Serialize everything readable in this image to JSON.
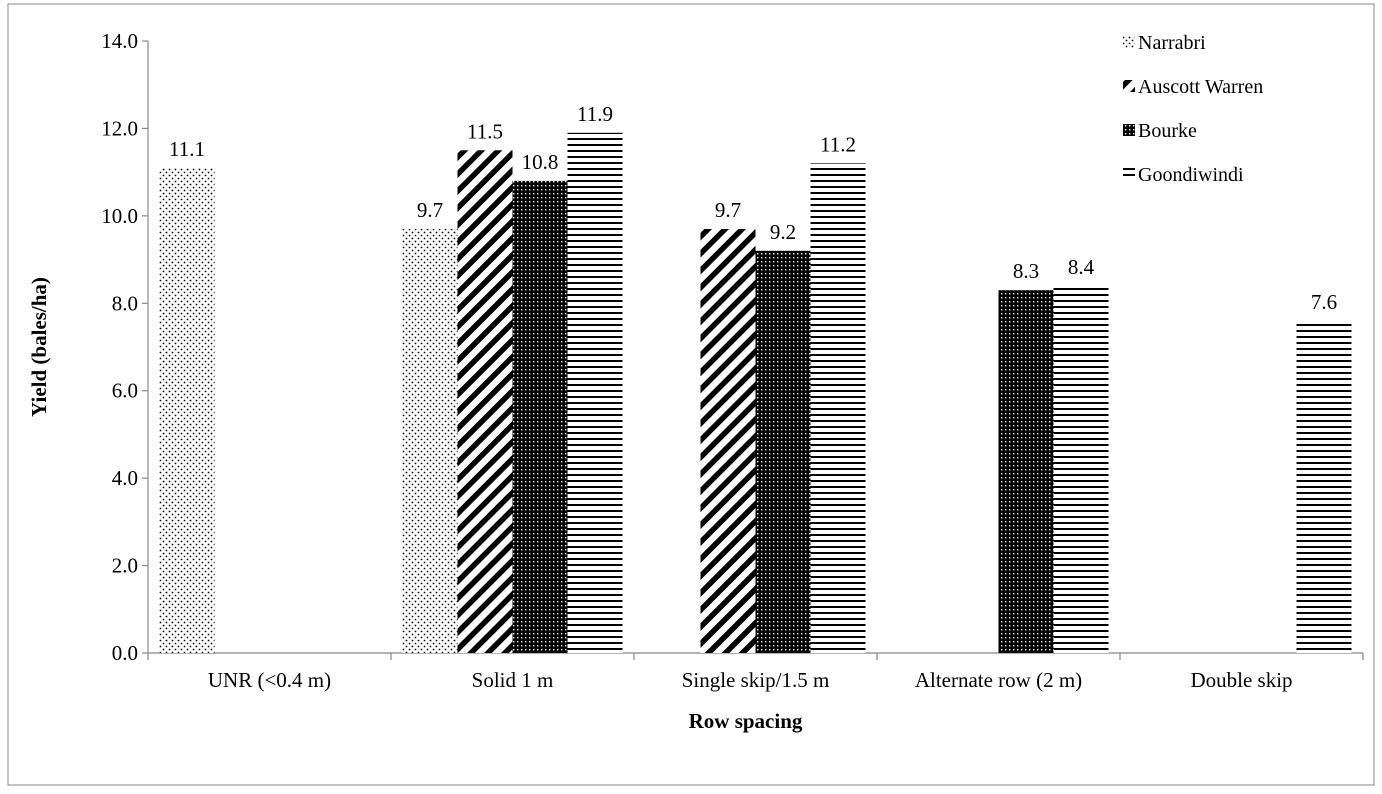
{
  "chart_data": {
    "type": "bar",
    "xlabel": "Row spacing",
    "ylabel": "Yield (bales/ha)",
    "ylim": [
      0,
      14
    ],
    "ytick_step": 2,
    "ytick_labels": [
      "0.0",
      "2.0",
      "4.0",
      "6.0",
      "8.0",
      "10.0",
      "12.0",
      "14.0"
    ],
    "grid": false,
    "legend_position": "top-right",
    "categories": [
      "UNR (<0.4 m)",
      "Solid 1 m",
      "Single skip/1.5 m",
      "Alternate row (2 m)",
      "Double skip"
    ],
    "series": [
      {
        "name": "Narrabri",
        "pattern": "dots",
        "values": [
          11.1,
          9.7,
          null,
          null,
          null
        ]
      },
      {
        "name": "Auscott Warren",
        "pattern": "diagonal",
        "values": [
          null,
          11.5,
          9.7,
          null,
          null
        ]
      },
      {
        "name": "Bourke",
        "pattern": "dense-dots",
        "values": [
          null,
          10.8,
          9.2,
          8.3,
          null
        ]
      },
      {
        "name": "Goondiwindi",
        "pattern": "horizontal",
        "values": [
          null,
          11.9,
          11.2,
          8.4,
          7.6
        ]
      }
    ],
    "data_labels": [
      {
        "category": 0,
        "series": 0,
        "text": "11.1"
      },
      {
        "category": 1,
        "series": 0,
        "text": "9.7"
      },
      {
        "category": 1,
        "series": 1,
        "text": "11.5"
      },
      {
        "category": 1,
        "series": 2,
        "text": "10.8"
      },
      {
        "category": 1,
        "series": 3,
        "text": "11.9"
      },
      {
        "category": 2,
        "series": 1,
        "text": "9.7"
      },
      {
        "category": 2,
        "series": 2,
        "text": "9.2"
      },
      {
        "category": 2,
        "series": 3,
        "text": "11.2"
      },
      {
        "category": 3,
        "series": 2,
        "text": "8.3"
      },
      {
        "category": 3,
        "series": 3,
        "text": "8.4"
      },
      {
        "category": 4,
        "series": 3,
        "text": "7.6"
      }
    ],
    "colors": {
      "ink": "#000000",
      "axis": "#888888",
      "background": "#ffffff"
    }
  }
}
